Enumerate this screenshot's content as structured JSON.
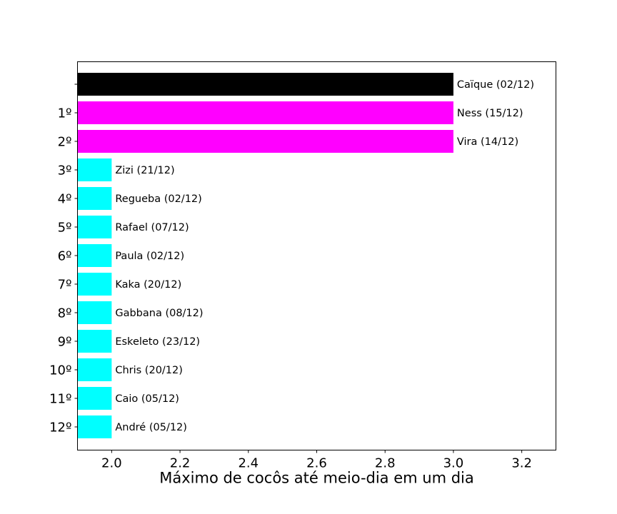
{
  "chart_data": {
    "type": "bar",
    "orientation": "horizontal",
    "title": "",
    "xlabel": "Máximo de cocôs até meio-dia em um dia",
    "ylabel": "",
    "xlim": [
      1.9,
      3.3
    ],
    "xticks": [
      2.0,
      2.2,
      2.4,
      2.6,
      2.8,
      3.0,
      3.2
    ],
    "xtick_labels": [
      "2.0",
      "2.2",
      "2.4",
      "2.6",
      "2.8",
      "3.0",
      "3.2"
    ],
    "grid": false,
    "legend": "none",
    "bars": [
      {
        "rank": "",
        "label": "Caïque (02/12)",
        "value": 3,
        "color": "#000000"
      },
      {
        "rank": "1º",
        "label": "Ness (15/12)",
        "value": 3,
        "color": "#ff00ff"
      },
      {
        "rank": "2º",
        "label": "Vira (14/12)",
        "value": 3,
        "color": "#ff00ff"
      },
      {
        "rank": "3º",
        "label": "Zizi (21/12)",
        "value": 2,
        "color": "#00ffff"
      },
      {
        "rank": "4º",
        "label": "Regueba (02/12)",
        "value": 2,
        "color": "#00ffff"
      },
      {
        "rank": "5º",
        "label": "Rafael (07/12)",
        "value": 2,
        "color": "#00ffff"
      },
      {
        "rank": "6º",
        "label": "Paula (02/12)",
        "value": 2,
        "color": "#00ffff"
      },
      {
        "rank": "7º",
        "label": "Kaka (20/12)",
        "value": 2,
        "color": "#00ffff"
      },
      {
        "rank": "8º",
        "label": "Gabbana (08/12)",
        "value": 2,
        "color": "#00ffff"
      },
      {
        "rank": "9º",
        "label": "Eskeleto (23/12)",
        "value": 2,
        "color": "#00ffff"
      },
      {
        "rank": "10º",
        "label": "Chris (20/12)",
        "value": 2,
        "color": "#00ffff"
      },
      {
        "rank": "11º",
        "label": "Caio (05/12)",
        "value": 2,
        "color": "#00ffff"
      },
      {
        "rank": "12º",
        "label": "André (05/12)",
        "value": 2,
        "color": "#00ffff"
      }
    ]
  }
}
